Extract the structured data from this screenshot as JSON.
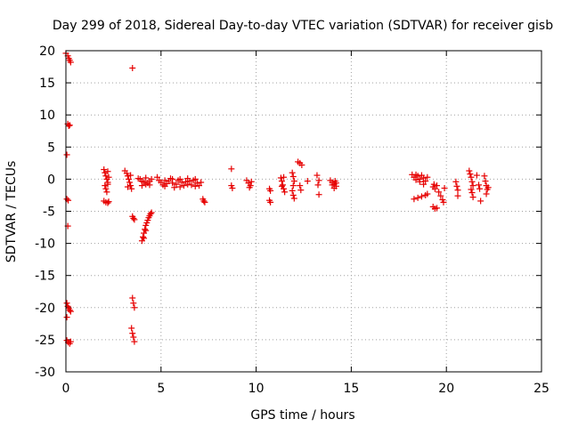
{
  "chart_data": {
    "type": "scatter",
    "title": "Day 299 of 2018, Sidereal Day-to-day VTEC variation (SDTVAR) for receiver gisb",
    "xlabel": "GPS time / hours",
    "ylabel": "SDTVAR / TECUs",
    "xlim": [
      0,
      25
    ],
    "ylim": [
      -30,
      20
    ],
    "xticks": [
      0,
      5,
      10,
      15,
      20,
      25
    ],
    "yticks": [
      -30,
      -25,
      -20,
      -15,
      -10,
      -5,
      0,
      5,
      10,
      15,
      20
    ],
    "grid": true,
    "marker": "+",
    "marker_color": "#e60000",
    "series": [
      {
        "name": "gisb",
        "points": [
          [
            0.0,
            19.6
          ],
          [
            0.1,
            19.2
          ],
          [
            0.15,
            18.8
          ],
          [
            0.2,
            18.5
          ],
          [
            0.25,
            18.2
          ],
          [
            0.1,
            8.6
          ],
          [
            0.15,
            8.3
          ],
          [
            0.2,
            8.4
          ],
          [
            0.05,
            3.8
          ],
          [
            0.05,
            -3.1
          ],
          [
            0.12,
            -3.3
          ],
          [
            0.1,
            -7.3
          ],
          [
            0.05,
            -19.3
          ],
          [
            0.1,
            -19.8
          ],
          [
            0.15,
            -20.1
          ],
          [
            0.2,
            -20.4
          ],
          [
            0.25,
            -20.6
          ],
          [
            0.05,
            -21.5
          ],
          [
            0.05,
            -25.1
          ],
          [
            0.12,
            -25.4
          ],
          [
            0.2,
            -25.6
          ],
          [
            0.25,
            -25.3
          ],
          [
            2.0,
            1.5
          ],
          [
            2.05,
            1.0
          ],
          [
            2.1,
            0.5
          ],
          [
            2.15,
            0.0
          ],
          [
            2.2,
            -0.5
          ],
          [
            2.05,
            -1.0
          ],
          [
            2.1,
            -1.5
          ],
          [
            2.15,
            -2.0
          ],
          [
            2.2,
            1.2
          ],
          [
            2.25,
            0.3
          ],
          [
            2.2,
            -0.8
          ],
          [
            2.0,
            -3.4
          ],
          [
            2.1,
            -3.6
          ],
          [
            2.2,
            -3.7
          ],
          [
            2.25,
            -3.5
          ],
          [
            3.1,
            1.3
          ],
          [
            3.2,
            0.9
          ],
          [
            3.25,
            0.5
          ],
          [
            3.3,
            0.0
          ],
          [
            3.35,
            -0.5
          ],
          [
            3.4,
            -1.0
          ],
          [
            3.45,
            -1.5
          ],
          [
            3.25,
            -1.2
          ],
          [
            3.4,
            0.6
          ],
          [
            3.5,
            17.3
          ],
          [
            3.5,
            -5.8
          ],
          [
            3.55,
            -6.1
          ],
          [
            3.6,
            -6.3
          ],
          [
            3.5,
            -18.5
          ],
          [
            3.55,
            -19.3
          ],
          [
            3.6,
            -20.0
          ],
          [
            3.45,
            -23.2
          ],
          [
            3.5,
            -24.0
          ],
          [
            3.55,
            -24.6
          ],
          [
            3.6,
            -25.3
          ],
          [
            3.8,
            0.1
          ],
          [
            3.9,
            0.0
          ],
          [
            4.0,
            -0.3
          ],
          [
            4.1,
            -0.5
          ],
          [
            4.2,
            -0.8
          ],
          [
            4.3,
            -0.6
          ],
          [
            4.4,
            -0.3
          ],
          [
            4.5,
            0.0
          ],
          [
            4.0,
            -1.0
          ],
          [
            4.2,
            0.2
          ],
          [
            4.4,
            -0.9
          ],
          [
            4.0,
            -9.6
          ],
          [
            4.05,
            -9.0
          ],
          [
            4.1,
            -8.4
          ],
          [
            4.15,
            -7.8
          ],
          [
            4.2,
            -7.2
          ],
          [
            4.25,
            -6.8
          ],
          [
            4.3,
            -6.4
          ],
          [
            4.35,
            -6.0
          ],
          [
            4.4,
            -5.7
          ],
          [
            4.45,
            -5.4
          ],
          [
            4.5,
            -5.2
          ],
          [
            4.1,
            -9.2
          ],
          [
            4.2,
            -8.0
          ],
          [
            4.8,
            0.3
          ],
          [
            4.9,
            -0.2
          ],
          [
            5.0,
            -0.5
          ],
          [
            5.1,
            -0.9
          ],
          [
            5.2,
            -1.1
          ],
          [
            5.3,
            -0.7
          ],
          [
            5.4,
            -0.3
          ],
          [
            5.5,
            0.1
          ],
          [
            5.6,
            -0.6
          ],
          [
            5.7,
            -1.3
          ],
          [
            5.8,
            -0.8
          ],
          [
            5.9,
            -0.2
          ],
          [
            6.0,
            0.0
          ],
          [
            6.1,
            -0.5
          ],
          [
            6.2,
            -1.0
          ],
          [
            6.3,
            -0.4
          ],
          [
            6.4,
            0.1
          ],
          [
            6.5,
            -0.3
          ],
          [
            6.6,
            -0.9
          ],
          [
            6.7,
            -0.2
          ],
          [
            6.8,
            0.0
          ],
          [
            6.9,
            -0.6
          ],
          [
            7.0,
            -1.0
          ],
          [
            7.1,
            -0.5
          ],
          [
            5.2,
            -0.2
          ],
          [
            5.6,
            0.0
          ],
          [
            6.0,
            -1.2
          ],
          [
            6.4,
            -0.8
          ],
          [
            6.8,
            -1.1
          ],
          [
            7.2,
            -3.1
          ],
          [
            7.25,
            -3.4
          ],
          [
            7.3,
            -3.6
          ],
          [
            8.7,
            1.6
          ],
          [
            8.7,
            -1.0
          ],
          [
            8.75,
            -1.4
          ],
          [
            9.5,
            -0.2
          ],
          [
            9.6,
            -0.6
          ],
          [
            9.7,
            -1.0
          ],
          [
            9.75,
            -0.4
          ],
          [
            9.65,
            -1.3
          ],
          [
            10.7,
            -1.5
          ],
          [
            10.75,
            -1.8
          ],
          [
            10.7,
            -3.3
          ],
          [
            10.75,
            -3.6
          ],
          [
            11.3,
            0.2
          ],
          [
            11.35,
            -0.3
          ],
          [
            11.4,
            -0.9
          ],
          [
            11.45,
            -1.5
          ],
          [
            11.5,
            -2.0
          ],
          [
            11.35,
            -1.1
          ],
          [
            11.45,
            0.3
          ],
          [
            11.9,
            1.0
          ],
          [
            11.95,
            0.4
          ],
          [
            12.0,
            -0.3
          ],
          [
            11.95,
            -1.0
          ],
          [
            11.9,
            -1.8
          ],
          [
            11.95,
            -2.5
          ],
          [
            12.0,
            -3.0
          ],
          [
            12.2,
            2.7
          ],
          [
            12.3,
            2.5
          ],
          [
            12.4,
            2.2
          ],
          [
            12.3,
            -1.0
          ],
          [
            12.35,
            -1.7
          ],
          [
            12.7,
            -0.3
          ],
          [
            13.2,
            0.6
          ],
          [
            13.3,
            -0.2
          ],
          [
            13.25,
            -0.9
          ],
          [
            13.3,
            -2.4
          ],
          [
            13.9,
            -0.2
          ],
          [
            14.0,
            -0.5
          ],
          [
            14.1,
            -0.8
          ],
          [
            14.2,
            -1.1
          ],
          [
            14.1,
            -1.4
          ],
          [
            14.0,
            -0.9
          ],
          [
            14.15,
            -0.3
          ],
          [
            14.2,
            -0.6
          ],
          [
            18.2,
            0.7
          ],
          [
            18.3,
            0.3
          ],
          [
            18.4,
            -0.1
          ],
          [
            18.5,
            0.5
          ],
          [
            18.6,
            0.0
          ],
          [
            18.7,
            0.6
          ],
          [
            18.8,
            0.2
          ],
          [
            18.9,
            -0.3
          ],
          [
            19.0,
            0.3
          ],
          [
            18.4,
            0.7
          ],
          [
            18.6,
            -0.4
          ],
          [
            18.8,
            -0.8
          ],
          [
            18.3,
            -3.1
          ],
          [
            18.5,
            -2.9
          ],
          [
            18.7,
            -2.7
          ],
          [
            18.9,
            -2.5
          ],
          [
            19.0,
            -2.3
          ],
          [
            19.3,
            -4.3
          ],
          [
            19.4,
            -4.6
          ],
          [
            19.5,
            -4.5
          ],
          [
            19.3,
            -1.2
          ],
          [
            19.35,
            -0.8
          ],
          [
            19.4,
            -1.5
          ],
          [
            19.5,
            -1.0
          ],
          [
            19.6,
            -2.0
          ],
          [
            19.7,
            -2.6
          ],
          [
            19.8,
            -3.2
          ],
          [
            19.85,
            -3.6
          ],
          [
            19.9,
            -1.4
          ],
          [
            20.5,
            -0.4
          ],
          [
            20.55,
            -1.1
          ],
          [
            20.6,
            -1.7
          ],
          [
            20.6,
            -2.6
          ],
          [
            21.2,
            1.3
          ],
          [
            21.25,
            0.8
          ],
          [
            21.3,
            0.3
          ],
          [
            21.35,
            -0.4
          ],
          [
            21.4,
            -1.0
          ],
          [
            21.3,
            -1.6
          ],
          [
            21.35,
            -2.1
          ],
          [
            21.4,
            -2.8
          ],
          [
            21.6,
            0.6
          ],
          [
            21.7,
            -0.9
          ],
          [
            21.75,
            -1.5
          ],
          [
            21.8,
            -3.4
          ],
          [
            22.0,
            0.5
          ],
          [
            22.05,
            -0.3
          ],
          [
            22.1,
            -1.0
          ],
          [
            22.15,
            -1.6
          ],
          [
            22.1,
            -2.3
          ],
          [
            22.2,
            -1.3
          ]
        ]
      }
    ]
  }
}
